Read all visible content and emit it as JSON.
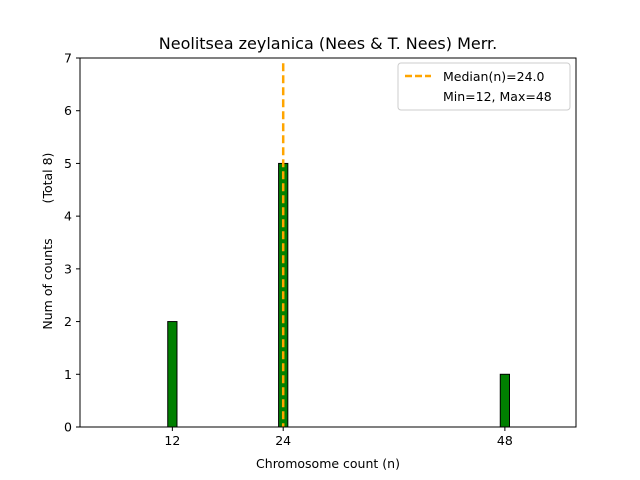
{
  "chart_data": {
    "type": "bar",
    "title": "Neolitsea zeylanica (Nees & T. Nees) Merr.",
    "xlabel": "Chromosome count (n)",
    "ylabel": "Num of counts",
    "ylabel_note": "(Total 8)",
    "xlim": [
      2,
      55.7
    ],
    "ylim": [
      0,
      7
    ],
    "x_ticks": [
      12,
      24,
      48
    ],
    "y_ticks": [
      0,
      1,
      2,
      3,
      4,
      5,
      6,
      7
    ],
    "bar_width": 1,
    "bars": [
      {
        "x": 12,
        "value": 2
      },
      {
        "x": 24,
        "value": 5
      },
      {
        "x": 48,
        "value": 1
      }
    ],
    "median": 24.0,
    "legend": {
      "position": "upper right",
      "median_label": "Median(n)=24.0",
      "range_label": "Min=12, Max=48"
    },
    "colors": {
      "bar_fill": "#008000",
      "bar_edge": "#000000",
      "median_line": "#FFA500"
    },
    "grid": false
  }
}
